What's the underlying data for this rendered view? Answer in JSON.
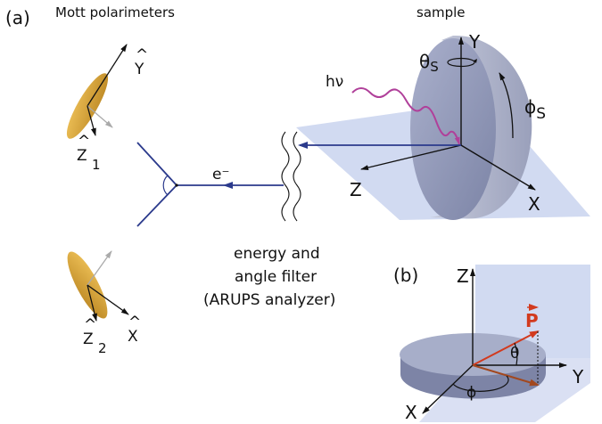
{
  "panel_a": {
    "panel_label": "(a)",
    "title_left": "Mott polarimeters",
    "title_right": "sample",
    "electron_label": "e⁻",
    "photon_label": "hν",
    "theta_s_symbol": "θ",
    "phi_s_symbol": "ϕ",
    "s_subscript": "S",
    "axis_x": "X",
    "axis_y": "Y",
    "axis_z": "Z",
    "hat_y": "Y",
    "hat_z": "Z",
    "hat_x": "X",
    "hat_glyph": "^",
    "sub_1": "1",
    "sub_2": "2",
    "filter_label": [
      "energy and",
      "angle filter",
      "(ARUPS analyzer)"
    ]
  },
  "panel_b": {
    "panel_label": "(b)",
    "axis_x": "X",
    "axis_y": "Y",
    "axis_z": "Z",
    "polarization": "P",
    "theta": "θ",
    "phi": "ϕ"
  },
  "colors": {
    "electron_path": "#2b3a8c",
    "photon": "#b0409a",
    "plane": "#c9d3ee",
    "sample_disk": "#8f97b8",
    "polarimeter": "#d9a53a",
    "polarization_vector": "#d23a1e",
    "projection_vector": "#a2481f"
  }
}
